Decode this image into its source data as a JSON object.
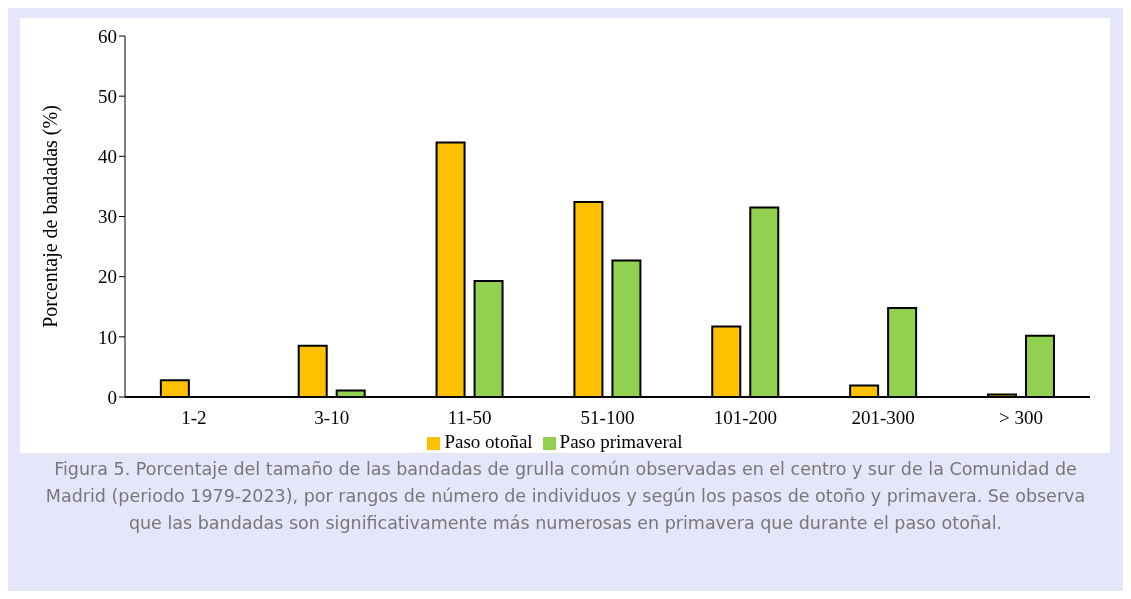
{
  "chart_data": {
    "type": "bar",
    "ylabel": "Porcentaje de bandadas (%)",
    "categories": [
      "1-2",
      "3-10",
      "11-50",
      "51-100",
      "101-200",
      "201-300",
      "> 300"
    ],
    "series": [
      {
        "name": "Paso otoñal",
        "color": "#ffc000",
        "values": [
          2.8,
          8.5,
          42.3,
          32.4,
          11.7,
          1.9,
          0.4
        ]
      },
      {
        "name": "Paso primaveral",
        "color": "#92d050",
        "values": [
          0,
          1.1,
          19.3,
          22.7,
          31.5,
          14.8,
          10.2
        ]
      }
    ],
    "ylim": [
      0,
      60
    ],
    "yticks": [
      0,
      10,
      20,
      30,
      40,
      50,
      60
    ],
    "grid": false,
    "legend": "bottom",
    "annotations": [
      "Figura 5. Porcentaje del tamaño de las bandadas de grulla común observadas en el centro y sur de la Comunidad de Madrid (periodo 1979-2023), por rangos de número de individuos y según los pasos de otoño y primavera. Se observa que las bandadas son significativamente más numerosas en primavera que durante el paso otoñal."
    ]
  }
}
